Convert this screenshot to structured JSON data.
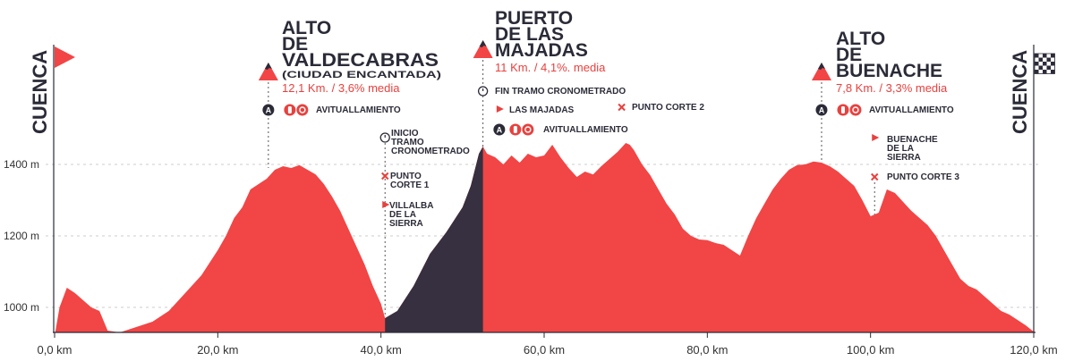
{
  "chart_data": {
    "type": "area",
    "x_unit": "km",
    "y_unit": "m",
    "xlim": [
      0,
      120
    ],
    "ylim": [
      920,
      1480
    ],
    "x_ticks": [
      0,
      20,
      40,
      60,
      80,
      100,
      120
    ],
    "x_tick_labels": [
      "0,0 km",
      "20,0 km",
      "40,0 km",
      "60,0 km",
      "80,0 km",
      "100,0 km",
      "120,0 km"
    ],
    "y_ticks": [
      1000,
      1200,
      1400
    ],
    "y_tick_labels": [
      "1000 m",
      "1200 m",
      "1400 m"
    ],
    "grid": true,
    "highlight_range": [
      40.5,
      52.5
    ],
    "colors": {
      "profile": "#f24545",
      "timed_segment": "#363040",
      "text": "#2b2b38",
      "accent": "#e8413e",
      "grid": "#cccccc"
    },
    "profile": [
      [
        0,
        920
      ],
      [
        0.6,
        1000
      ],
      [
        1.5,
        1055
      ],
      [
        2.5,
        1040
      ],
      [
        3.5,
        1020
      ],
      [
        4.5,
        1000
      ],
      [
        5.5,
        990
      ],
      [
        6.5,
        935
      ],
      [
        8,
        930
      ],
      [
        10,
        945
      ],
      [
        12,
        960
      ],
      [
        14,
        990
      ],
      [
        16,
        1040
      ],
      [
        18,
        1090
      ],
      [
        20,
        1160
      ],
      [
        21,
        1200
      ],
      [
        22,
        1250
      ],
      [
        23,
        1280
      ],
      [
        24,
        1330
      ],
      [
        25,
        1345
      ],
      [
        26,
        1360
      ],
      [
        27,
        1385
      ],
      [
        28,
        1395
      ],
      [
        29,
        1390
      ],
      [
        30,
        1398
      ],
      [
        31,
        1385
      ],
      [
        32,
        1372
      ],
      [
        33,
        1345
      ],
      [
        34,
        1310
      ],
      [
        35,
        1270
      ],
      [
        36,
        1220
      ],
      [
        37,
        1170
      ],
      [
        38,
        1120
      ],
      [
        39,
        1060
      ],
      [
        40,
        1010
      ],
      [
        40.5,
        970
      ],
      [
        42,
        990
      ],
      [
        44,
        1060
      ],
      [
        46,
        1150
      ],
      [
        48,
        1210
      ],
      [
        50,
        1280
      ],
      [
        51,
        1340
      ],
      [
        52,
        1430
      ],
      [
        52.5,
        1450
      ],
      [
        53,
        1430
      ],
      [
        54,
        1420
      ],
      [
        55,
        1400
      ],
      [
        56,
        1425
      ],
      [
        57,
        1405
      ],
      [
        58,
        1430
      ],
      [
        59,
        1420
      ],
      [
        60,
        1425
      ],
      [
        61,
        1455
      ],
      [
        62,
        1420
      ],
      [
        63,
        1390
      ],
      [
        64,
        1365
      ],
      [
        65,
        1380
      ],
      [
        66,
        1372
      ],
      [
        67,
        1395
      ],
      [
        68,
        1415
      ],
      [
        69,
        1435
      ],
      [
        70,
        1460
      ],
      [
        70.5,
        1455
      ],
      [
        71,
        1440
      ],
      [
        72,
        1400
      ],
      [
        73,
        1370
      ],
      [
        74,
        1330
      ],
      [
        75,
        1290
      ],
      [
        76,
        1260
      ],
      [
        77,
        1220
      ],
      [
        78,
        1200
      ],
      [
        79,
        1190
      ],
      [
        80,
        1188
      ],
      [
        81,
        1180
      ],
      [
        82,
        1175
      ],
      [
        83,
        1160
      ],
      [
        84,
        1145
      ],
      [
        85,
        1200
      ],
      [
        86,
        1250
      ],
      [
        87,
        1290
      ],
      [
        88,
        1330
      ],
      [
        89,
        1360
      ],
      [
        90,
        1385
      ],
      [
        91,
        1398
      ],
      [
        92,
        1400
      ],
      [
        93,
        1408
      ],
      [
        94,
        1405
      ],
      [
        95,
        1395
      ],
      [
        96,
        1380
      ],
      [
        97,
        1360
      ],
      [
        98,
        1340
      ],
      [
        99,
        1300
      ],
      [
        100,
        1255
      ],
      [
        101,
        1265
      ],
      [
        102,
        1330
      ],
      [
        103,
        1320
      ],
      [
        104,
        1295
      ],
      [
        105,
        1270
      ],
      [
        106,
        1250
      ],
      [
        107,
        1230
      ],
      [
        108,
        1200
      ],
      [
        109,
        1160
      ],
      [
        110,
        1120
      ],
      [
        111,
        1080
      ],
      [
        112,
        1060
      ],
      [
        113,
        1050
      ],
      [
        114,
        1030
      ],
      [
        115,
        1010
      ],
      [
        116,
        990
      ],
      [
        117,
        980
      ],
      [
        118,
        965
      ],
      [
        119,
        950
      ],
      [
        120,
        932
      ]
    ]
  },
  "climbs": [
    {
      "id": "valdecabras",
      "km": 26.2,
      "title_lines": [
        "ALTO",
        "DE",
        "VALDECABRAS"
      ],
      "subtitle_line": "(CIUDAD ENCANTADA)",
      "stats": "12,1 Km. / 3,6% media"
    },
    {
      "id": "majadas",
      "km": 52.5,
      "title_lines": [
        "PUERTO",
        "DE LAS",
        "MAJADAS"
      ],
      "subtitle_line": "",
      "stats": "11 Km. / 4,1%. media"
    },
    {
      "id": "buenache",
      "km": 94,
      "title_lines": [
        "ALTO",
        "DE",
        "BUENACHE"
      ],
      "subtitle_line": "",
      "stats": "7,8 Km. / 3,3% media"
    }
  ],
  "feed_zones": [
    {
      "km": 26.2,
      "badge": "A",
      "label": "AVITUALLAMIENTO"
    },
    {
      "km": 54.5,
      "badge": "A",
      "label": "AVITUALLAMIENTO"
    },
    {
      "km": 94,
      "badge": "A",
      "label": "AVITUALLAMIENTO"
    }
  ],
  "timed_start": {
    "km": 40.5,
    "lines": [
      "INICIO",
      "TRAMO",
      "CRONOMETRADO"
    ]
  },
  "timed_end": {
    "km": 52.5,
    "label": "FIN TRAMO CRONOMETRADO"
  },
  "cut_points": [
    {
      "km": 40.5,
      "lines": [
        "PUNTO",
        "CORTE 1"
      ]
    },
    {
      "km": 69.5,
      "lines": [
        "PUNTO CORTE 2"
      ]
    },
    {
      "km": 100.5,
      "lines": [
        "PUNTO CORTE 3"
      ]
    }
  ],
  "towns": [
    {
      "km": 40.5,
      "lines": [
        "VILLALBA",
        "DE LA",
        "SIERRA"
      ]
    },
    {
      "km": 54.5,
      "lines": [
        "LAS MAJADAS"
      ]
    },
    {
      "km": 100.5,
      "lines": [
        "BUENACHE",
        "DE LA",
        "SIERRA"
      ]
    }
  ],
  "start_label": "CUENCA",
  "finish_label": "CUENCA"
}
